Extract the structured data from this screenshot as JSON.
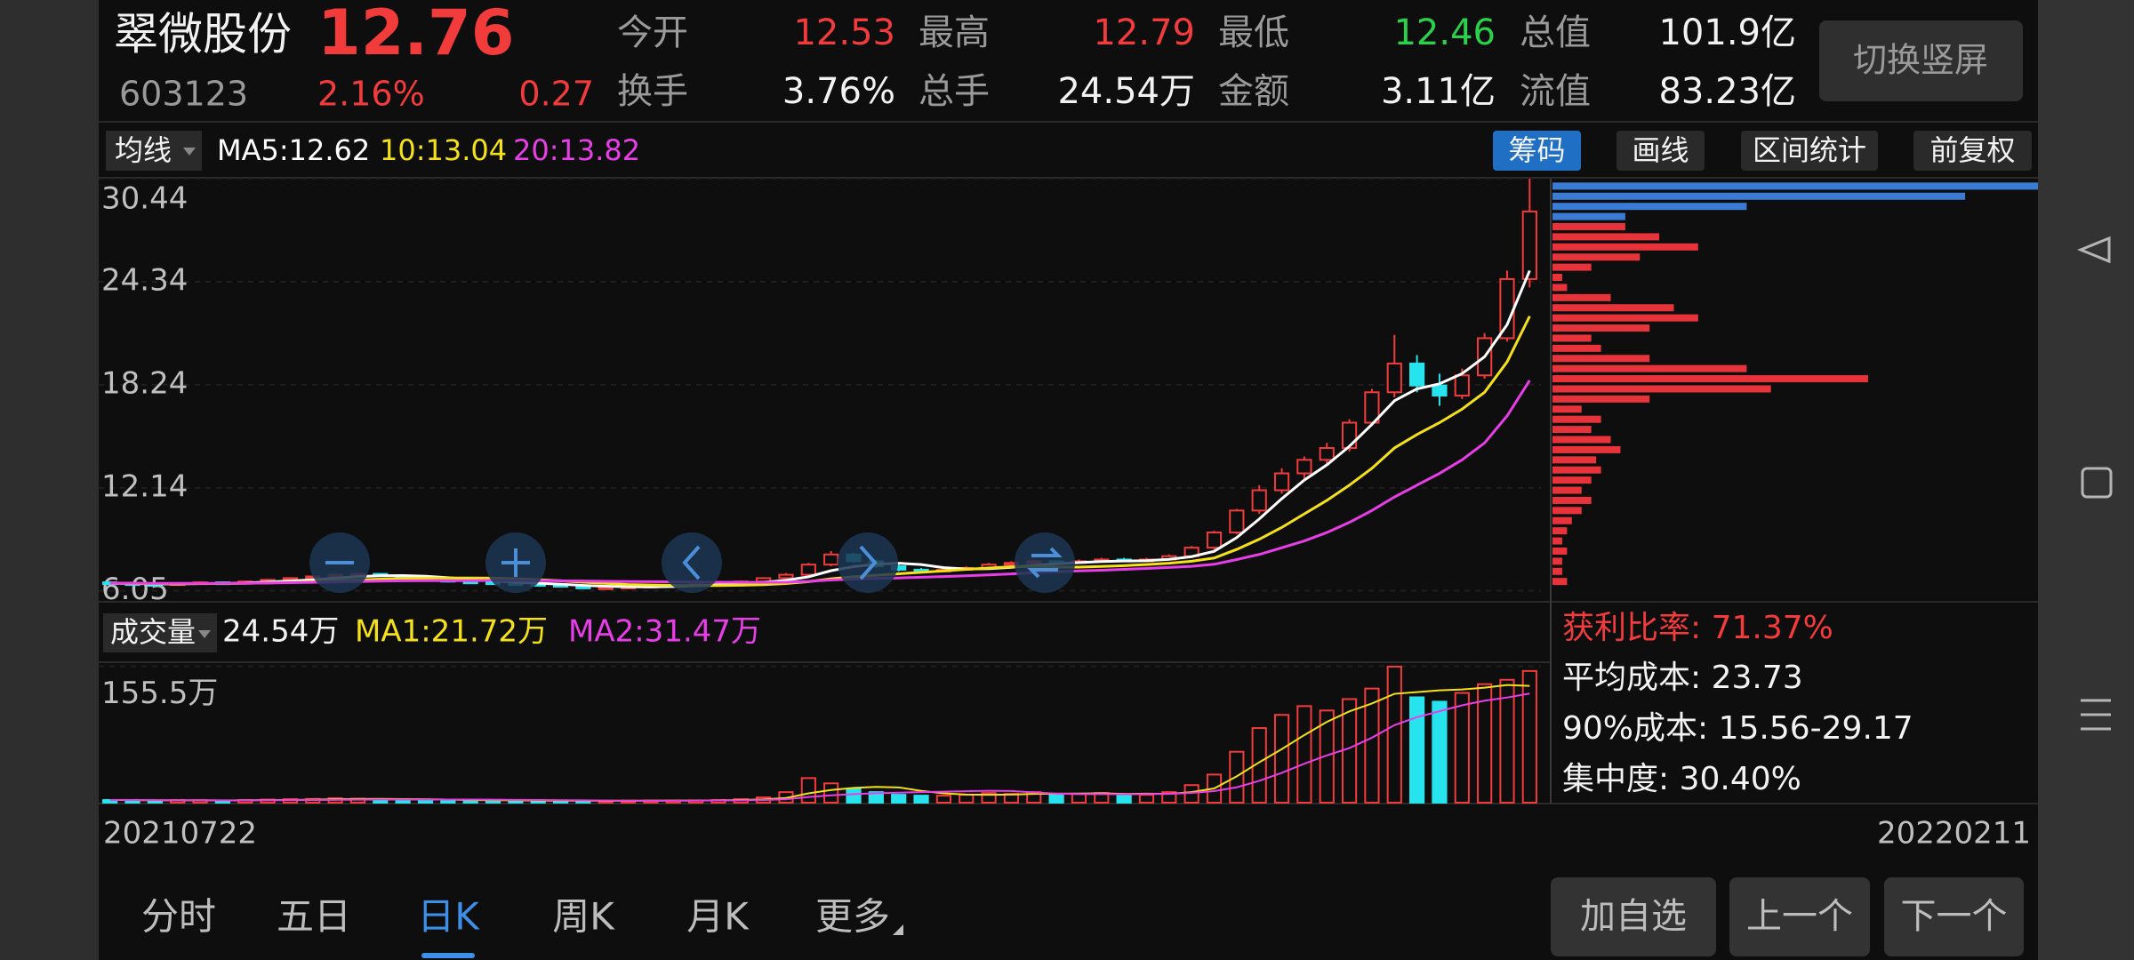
{
  "header": {
    "name": "翠微股份",
    "price": "12.76",
    "code": "603123",
    "change_percent": "2.16%",
    "change": "0.27",
    "fields": [
      {
        "label": "今开",
        "value": "12.53"
      },
      {
        "label": "最高",
        "value": "12.79"
      },
      {
        "label": "最低",
        "value": "12.46"
      },
      {
        "label": "总值",
        "value": "101.9亿"
      },
      {
        "label": "换手",
        "value": "3.76%"
      },
      {
        "label": "总手",
        "value": "24.54万"
      },
      {
        "label": "金额",
        "value": "3.11亿"
      },
      {
        "label": "流值",
        "value": "83.23亿"
      }
    ],
    "switch_button": "切换竖屏"
  },
  "toolbar": {
    "buttons": [
      "筹码",
      "画线",
      "区间统计",
      "前复权"
    ]
  },
  "chart_data": [
    {
      "type": "candlestick",
      "title": "均线",
      "ylim": [
        5.4,
        30.44
      ],
      "yticks": [
        30.44,
        24.34,
        18.24,
        12.14,
        6.05
      ],
      "grid": true,
      "date_range": [
        "20210722",
        "20220211"
      ],
      "up_color": "#f23b3b",
      "down_color": "#27e3ee",
      "ohlc": [
        [
          6.55,
          6.6,
          6.4,
          6.5
        ],
        [
          6.5,
          6.55,
          6.4,
          6.45
        ],
        [
          6.45,
          6.5,
          6.35,
          6.4
        ],
        [
          6.4,
          6.55,
          6.35,
          6.5
        ],
        [
          6.5,
          6.6,
          6.45,
          6.55
        ],
        [
          6.55,
          6.6,
          6.45,
          6.5
        ],
        [
          6.5,
          6.65,
          6.45,
          6.6
        ],
        [
          6.6,
          6.75,
          6.55,
          6.7
        ],
        [
          6.7,
          6.85,
          6.65,
          6.8
        ],
        [
          6.8,
          6.95,
          6.75,
          6.9
        ],
        [
          6.9,
          7.1,
          6.85,
          7.0
        ],
        [
          7.0,
          7.15,
          6.95,
          7.05
        ],
        [
          7.05,
          7.1,
          6.9,
          6.95
        ],
        [
          6.95,
          7.0,
          6.8,
          6.85
        ],
        [
          6.85,
          6.9,
          6.65,
          6.7
        ],
        [
          6.7,
          6.75,
          6.55,
          6.6
        ],
        [
          6.6,
          6.65,
          6.5,
          6.55
        ],
        [
          6.55,
          6.6,
          6.45,
          6.5
        ],
        [
          6.5,
          6.55,
          6.4,
          6.45
        ],
        [
          6.45,
          6.5,
          6.35,
          6.4
        ],
        [
          6.4,
          6.45,
          6.25,
          6.3
        ],
        [
          6.3,
          6.35,
          6.15,
          6.2
        ],
        [
          6.2,
          6.3,
          6.15,
          6.25
        ],
        [
          6.25,
          6.35,
          6.2,
          6.3
        ],
        [
          6.3,
          6.4,
          6.25,
          6.35
        ],
        [
          6.35,
          6.45,
          6.3,
          6.4
        ],
        [
          6.4,
          6.5,
          6.35,
          6.45
        ],
        [
          6.45,
          6.55,
          6.4,
          6.5
        ],
        [
          6.5,
          6.65,
          6.45,
          6.6
        ],
        [
          6.6,
          6.85,
          6.55,
          6.8
        ],
        [
          6.8,
          7.1,
          6.75,
          7.0
        ],
        [
          7.0,
          7.7,
          6.95,
          7.6
        ],
        [
          7.6,
          8.4,
          7.5,
          8.2
        ],
        [
          8.2,
          8.3,
          7.7,
          7.8
        ],
        [
          7.8,
          7.9,
          7.4,
          7.5
        ],
        [
          7.5,
          7.6,
          7.2,
          7.3
        ],
        [
          7.3,
          7.4,
          7.1,
          7.2
        ],
        [
          7.2,
          7.4,
          7.15,
          7.3
        ],
        [
          7.3,
          7.5,
          7.25,
          7.4
        ],
        [
          7.4,
          7.7,
          7.35,
          7.6
        ],
        [
          7.6,
          7.8,
          7.5,
          7.7
        ],
        [
          7.7,
          7.9,
          7.6,
          7.8
        ],
        [
          7.8,
          7.85,
          7.6,
          7.7
        ],
        [
          7.7,
          7.9,
          7.65,
          7.8
        ],
        [
          7.8,
          8.0,
          7.75,
          7.9
        ],
        [
          7.9,
          8.0,
          7.8,
          7.85
        ],
        [
          7.85,
          8.0,
          7.8,
          7.9
        ],
        [
          7.9,
          8.2,
          7.85,
          8.1
        ],
        [
          8.1,
          8.7,
          8.0,
          8.6
        ],
        [
          8.6,
          9.6,
          8.5,
          9.5
        ],
        [
          9.5,
          10.9,
          9.4,
          10.8
        ],
        [
          10.8,
          12.3,
          10.6,
          12.0
        ],
        [
          12.0,
          13.3,
          11.8,
          13.0
        ],
        [
          13.0,
          14.0,
          12.6,
          13.8
        ],
        [
          13.8,
          14.8,
          13.5,
          14.5
        ],
        [
          14.5,
          16.2,
          14.3,
          16.0
        ],
        [
          16.0,
          18.0,
          15.8,
          17.8
        ],
        [
          17.8,
          21.2,
          17.5,
          19.5
        ],
        [
          19.5,
          20.0,
          17.8,
          18.2
        ],
        [
          18.2,
          18.9,
          17.0,
          17.6
        ],
        [
          17.6,
          19.2,
          17.4,
          18.8
        ],
        [
          18.8,
          21.3,
          18.6,
          21.0
        ],
        [
          21.0,
          25.0,
          20.8,
          24.5
        ],
        [
          24.5,
          30.44,
          24.0,
          28.5
        ]
      ],
      "series": [
        {
          "name": "MA5:12.62",
          "color": "#ffffff",
          "values": [
            6.5,
            6.48,
            6.46,
            6.46,
            6.48,
            6.48,
            6.51,
            6.57,
            6.63,
            6.7,
            6.8,
            6.89,
            6.94,
            6.95,
            6.91,
            6.83,
            6.73,
            6.64,
            6.56,
            6.5,
            6.44,
            6.37,
            6.32,
            6.29,
            6.28,
            6.3,
            6.35,
            6.4,
            6.46,
            6.55,
            6.67,
            6.88,
            7.24,
            7.48,
            7.62,
            7.68,
            7.6,
            7.42,
            7.34,
            7.36,
            7.44,
            7.56,
            7.64,
            7.72,
            7.78,
            7.81,
            7.83,
            7.91,
            8.07,
            8.39,
            9.2,
            10.3,
            11.5,
            12.6,
            13.5,
            14.6,
            15.9,
            17.3,
            18.0,
            18.3,
            18.9,
            19.9,
            21.8,
            25.0
          ]
        },
        {
          "name": "10:13.04",
          "color": "#f5e11a",
          "values": [
            6.5,
            6.49,
            6.47,
            6.47,
            6.48,
            6.48,
            6.49,
            6.52,
            6.55,
            6.59,
            6.64,
            6.69,
            6.74,
            6.78,
            6.8,
            6.81,
            6.81,
            6.8,
            6.76,
            6.71,
            6.64,
            6.56,
            6.49,
            6.42,
            6.39,
            6.37,
            6.36,
            6.36,
            6.38,
            6.41,
            6.48,
            6.59,
            6.76,
            6.88,
            6.97,
            7.06,
            7.14,
            7.23,
            7.32,
            7.4,
            7.47,
            7.49,
            7.45,
            7.45,
            7.49,
            7.54,
            7.6,
            7.68,
            7.8,
            7.99,
            8.5,
            9.1,
            9.8,
            10.6,
            11.4,
            12.3,
            13.3,
            14.5,
            15.3,
            16.0,
            16.8,
            17.8,
            19.6,
            22.3
          ]
        },
        {
          "name": "20:13.82",
          "color": "#e83ee8",
          "values": [
            6.5,
            6.5,
            6.49,
            6.49,
            6.49,
            6.49,
            6.5,
            6.51,
            6.53,
            6.55,
            6.57,
            6.6,
            6.62,
            6.64,
            6.65,
            6.65,
            6.65,
            6.66,
            6.66,
            6.65,
            6.64,
            6.63,
            6.61,
            6.6,
            6.59,
            6.58,
            6.57,
            6.56,
            6.55,
            6.55,
            6.56,
            6.61,
            6.69,
            6.74,
            6.78,
            6.81,
            6.85,
            6.89,
            6.94,
            6.99,
            7.05,
            7.12,
            7.18,
            7.23,
            7.27,
            7.32,
            7.37,
            7.43,
            7.5,
            7.62,
            7.9,
            8.2,
            8.6,
            9.0,
            9.5,
            10.1,
            10.8,
            11.6,
            12.3,
            13.0,
            13.8,
            14.8,
            16.4,
            18.5
          ]
        }
      ]
    },
    {
      "type": "volume",
      "title": "成交量",
      "current": "24.54万",
      "ylim": [
        0,
        160
      ],
      "yticks": [
        {
          "value": 155.5,
          "label": "155.5万"
        }
      ],
      "values": [
        3,
        2.5,
        2,
        3,
        2.8,
        2.2,
        3,
        3.5,
        4,
        4.2,
        5,
        4.5,
        3.8,
        3.2,
        3,
        2.8,
        2.5,
        2.4,
        2.2,
        2,
        2.5,
        2.2,
        2,
        2.3,
        2.5,
        2.4,
        2.6,
        3,
        4,
        6,
        12,
        28,
        22,
        16,
        12,
        9,
        8,
        8,
        9,
        11,
        10,
        12,
        9,
        10,
        11,
        8,
        9,
        12,
        20,
        32,
        58,
        85,
        100,
        110,
        105,
        118,
        130,
        155,
        120,
        115,
        125,
        135,
        140,
        150
      ],
      "series": [
        {
          "name": "MA1:21.72万",
          "color": "#f5e11a",
          "values": [
            3,
            2.9,
            2.7,
            2.7,
            2.7,
            2.5,
            2.6,
            2.9,
            3.1,
            3.4,
            3.9,
            4.2,
            4.3,
            4.1,
            3.9,
            3.5,
            3.1,
            2.8,
            2.6,
            2.4,
            2.3,
            2.3,
            2.2,
            2.2,
            2.3,
            2.4,
            2.4,
            2.6,
            3,
            3.7,
            5.3,
            10.6,
            14.4,
            16.8,
            18,
            17.4,
            13.4,
            10.6,
            9.2,
            9,
            9.2,
            10,
            10.2,
            10.4,
            10.6,
            10,
            10.2,
            10,
            12,
            16.2,
            30,
            46,
            61,
            77,
            92,
            104,
            113,
            124,
            126,
            128,
            129,
            131,
            134,
            133
          ]
        },
        {
          "name": "MA2:31.47万",
          "color": "#e83ee8",
          "values": [
            3,
            3,
            2.9,
            2.8,
            2.8,
            2.7,
            2.7,
            2.8,
            2.9,
            3,
            3.2,
            3.4,
            3.5,
            3.6,
            3.6,
            3.5,
            3.5,
            3.4,
            3.2,
            3,
            2.8,
            2.6,
            2.4,
            2.3,
            2.3,
            2.3,
            2.4,
            2.5,
            2.7,
            3,
            3.9,
            6.5,
            8.4,
            9.8,
            10.7,
            11.4,
            12,
            12.5,
            13,
            13.5,
            13.3,
            11.7,
            10.4,
            9.8,
            9.7,
            9.6,
            9.7,
            10.1,
            11.1,
            13.2,
            17.5,
            24.9,
            34,
            44.4,
            53.8,
            62.2,
            74,
            88.3,
            97.4,
            104.2,
            110.9,
            116.2,
            119.8,
            124.3
          ]
        }
      ]
    },
    {
      "type": "chips",
      "xlim": [
        0,
        100
      ],
      "series": [
        {
          "color": "#e8333b",
          "prices": [
            6.6,
            7.2,
            7.8,
            8.4,
            9.0,
            9.6,
            10.2,
            10.8,
            11.4,
            12.0,
            12.6,
            13.2,
            13.8,
            14.4,
            15.0,
            15.6,
            16.2,
            16.8,
            17.4,
            18.0,
            18.6,
            19.2,
            19.8,
            20.4,
            21.0,
            21.6,
            22.2,
            22.8,
            23.4,
            24.0,
            24.6,
            25.2,
            25.8,
            26.4,
            27.0,
            27.6
          ],
          "values": [
            3,
            2,
            2,
            3,
            2,
            3,
            4,
            6,
            8,
            6,
            8,
            10,
            9,
            14,
            12,
            8,
            10,
            6,
            20,
            45,
            65,
            40,
            20,
            10,
            8,
            20,
            30,
            25,
            12,
            3,
            2,
            8,
            18,
            30,
            22,
            15
          ]
        },
        {
          "color": "#3a7bd5",
          "prices": [
            28.2,
            28.8,
            29.4,
            30.0
          ],
          "values": [
            15,
            40,
            85,
            100
          ]
        }
      ],
      "stats": [
        "获利比率: 71.37%",
        "平均成本: 23.73",
        "90%成本:  15.56-29.17",
        "集中度: 30.40%"
      ]
    }
  ],
  "tabs": [
    "分时",
    "五日",
    "日K",
    "周K",
    "月K",
    "更多"
  ],
  "actions": [
    "加自选",
    "上一个",
    "下一个"
  ]
}
